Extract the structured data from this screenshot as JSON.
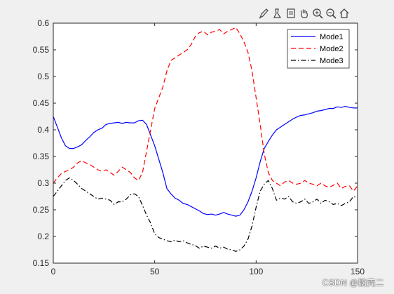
{
  "toolbar": {
    "items": [
      {
        "name": "brush-icon"
      },
      {
        "name": "save-icon"
      },
      {
        "name": "copy-figure-icon"
      },
      {
        "name": "pan-hand-icon"
      },
      {
        "name": "zoom-in-icon"
      },
      {
        "name": "zoom-out-icon"
      },
      {
        "name": "home-icon"
      }
    ]
  },
  "watermark": {
    "text": "CSDN @脑壳二"
  },
  "chart_data": {
    "type": "line",
    "title": "",
    "xlabel": "",
    "ylabel": "",
    "xlim": [
      0,
      150
    ],
    "ylim": [
      0.15,
      0.6
    ],
    "xticks": [
      0,
      50,
      100,
      150
    ],
    "yticks": [
      0.15,
      0.2,
      0.25,
      0.3,
      0.35,
      0.4,
      0.45,
      0.5,
      0.55,
      0.6
    ],
    "grid": false,
    "legend_position": "top-right",
    "series": [
      {
        "name": "Mode1",
        "color": "#0000ff",
        "style": "solid",
        "x": [
          0,
          2,
          4,
          6,
          8,
          10,
          12,
          14,
          16,
          18,
          20,
          22,
          24,
          26,
          28,
          30,
          32,
          34,
          36,
          38,
          40,
          42,
          44,
          46,
          48,
          50,
          52,
          54,
          56,
          58,
          60,
          62,
          64,
          66,
          68,
          70,
          72,
          74,
          76,
          78,
          80,
          82,
          84,
          86,
          88,
          90,
          92,
          94,
          96,
          98,
          100,
          102,
          104,
          106,
          108,
          110,
          112,
          114,
          116,
          118,
          120,
          122,
          124,
          126,
          128,
          130,
          132,
          134,
          136,
          138,
          140,
          142,
          144,
          146,
          148,
          150
        ],
        "y": [
          0.425,
          0.405,
          0.385,
          0.37,
          0.365,
          0.365,
          0.368,
          0.372,
          0.38,
          0.387,
          0.395,
          0.4,
          0.403,
          0.41,
          0.412,
          0.413,
          0.414,
          0.412,
          0.414,
          0.413,
          0.413,
          0.417,
          0.418,
          0.41,
          0.39,
          0.37,
          0.345,
          0.32,
          0.29,
          0.28,
          0.272,
          0.268,
          0.262,
          0.26,
          0.256,
          0.252,
          0.248,
          0.243,
          0.241,
          0.242,
          0.24,
          0.242,
          0.245,
          0.242,
          0.24,
          0.238,
          0.24,
          0.25,
          0.265,
          0.285,
          0.31,
          0.34,
          0.365,
          0.378,
          0.39,
          0.4,
          0.405,
          0.41,
          0.415,
          0.42,
          0.424,
          0.427,
          0.428,
          0.43,
          0.432,
          0.435,
          0.436,
          0.438,
          0.44,
          0.44,
          0.443,
          0.442,
          0.444,
          0.442,
          0.441,
          0.441
        ]
      },
      {
        "name": "Mode2",
        "color": "#ff0000",
        "style": "dashed",
        "x": [
          0,
          2,
          4,
          6,
          8,
          10,
          12,
          14,
          16,
          18,
          20,
          22,
          24,
          26,
          28,
          30,
          32,
          34,
          36,
          38,
          40,
          42,
          44,
          46,
          48,
          50,
          52,
          54,
          56,
          58,
          60,
          62,
          64,
          66,
          68,
          70,
          72,
          74,
          76,
          78,
          80,
          82,
          84,
          86,
          88,
          90,
          92,
          94,
          96,
          98,
          100,
          102,
          104,
          106,
          108,
          110,
          112,
          114,
          116,
          118,
          120,
          122,
          124,
          126,
          128,
          130,
          132,
          134,
          136,
          138,
          140,
          142,
          144,
          146,
          148,
          150
        ],
        "y": [
          0.3,
          0.31,
          0.318,
          0.322,
          0.325,
          0.33,
          0.338,
          0.342,
          0.338,
          0.335,
          0.33,
          0.325,
          0.322,
          0.325,
          0.32,
          0.315,
          0.322,
          0.33,
          0.325,
          0.32,
          0.31,
          0.305,
          0.32,
          0.36,
          0.4,
          0.44,
          0.46,
          0.48,
          0.51,
          0.53,
          0.535,
          0.54,
          0.545,
          0.55,
          0.56,
          0.575,
          0.582,
          0.585,
          0.578,
          0.583,
          0.585,
          0.588,
          0.58,
          0.585,
          0.588,
          0.592,
          0.58,
          0.565,
          0.545,
          0.51,
          0.46,
          0.41,
          0.355,
          0.32,
          0.305,
          0.3,
          0.295,
          0.302,
          0.305,
          0.3,
          0.298,
          0.3,
          0.305,
          0.3,
          0.298,
          0.295,
          0.3,
          0.295,
          0.292,
          0.296,
          0.3,
          0.29,
          0.294,
          0.295,
          0.285,
          0.295
        ]
      },
      {
        "name": "Mode3",
        "color": "#000000",
        "style": "dashdot",
        "x": [
          0,
          2,
          4,
          6,
          8,
          10,
          12,
          14,
          16,
          18,
          20,
          22,
          24,
          26,
          28,
          30,
          32,
          34,
          36,
          38,
          40,
          42,
          44,
          46,
          48,
          50,
          52,
          54,
          56,
          58,
          60,
          62,
          64,
          66,
          68,
          70,
          72,
          74,
          76,
          78,
          80,
          82,
          84,
          86,
          88,
          90,
          92,
          94,
          96,
          98,
          100,
          102,
          104,
          106,
          108,
          110,
          112,
          114,
          116,
          118,
          120,
          122,
          124,
          126,
          128,
          130,
          132,
          134,
          136,
          138,
          140,
          142,
          144,
          146,
          148,
          150
        ],
        "y": [
          0.275,
          0.285,
          0.295,
          0.305,
          0.31,
          0.305,
          0.298,
          0.29,
          0.285,
          0.28,
          0.275,
          0.27,
          0.272,
          0.27,
          0.268,
          0.26,
          0.265,
          0.265,
          0.27,
          0.278,
          0.28,
          0.275,
          0.258,
          0.24,
          0.225,
          0.205,
          0.198,
          0.195,
          0.192,
          0.19,
          0.193,
          0.19,
          0.192,
          0.188,
          0.185,
          0.183,
          0.178,
          0.182,
          0.18,
          0.178,
          0.182,
          0.178,
          0.18,
          0.176,
          0.175,
          0.172,
          0.175,
          0.182,
          0.195,
          0.22,
          0.255,
          0.285,
          0.298,
          0.305,
          0.29,
          0.268,
          0.272,
          0.27,
          0.275,
          0.265,
          0.262,
          0.265,
          0.27,
          0.262,
          0.265,
          0.27,
          0.262,
          0.268,
          0.265,
          0.26,
          0.262,
          0.258,
          0.262,
          0.265,
          0.275,
          0.272
        ]
      }
    ]
  }
}
